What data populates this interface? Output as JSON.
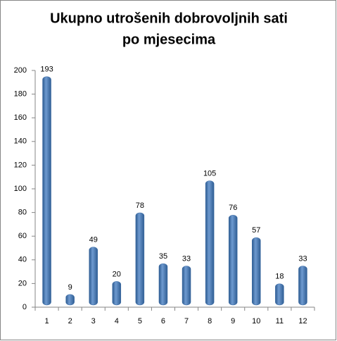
{
  "chart_data": {
    "type": "bar",
    "title": [
      "Ukupno utrošenih dobrovoljnih sati",
      "po mjesecima"
    ],
    "categories": [
      "1",
      "2",
      "3",
      "4",
      "5",
      "6",
      "7",
      "8",
      "9",
      "10",
      "11",
      "12"
    ],
    "values": [
      193,
      9,
      49,
      20,
      78,
      35,
      33,
      105,
      76,
      57,
      18,
      33
    ],
    "color": "#4f81bd",
    "ylim": [
      0,
      200
    ],
    "yticks": [
      0,
      20,
      40,
      60,
      80,
      100,
      120,
      140,
      160,
      180,
      200
    ],
    "grid": false
  }
}
